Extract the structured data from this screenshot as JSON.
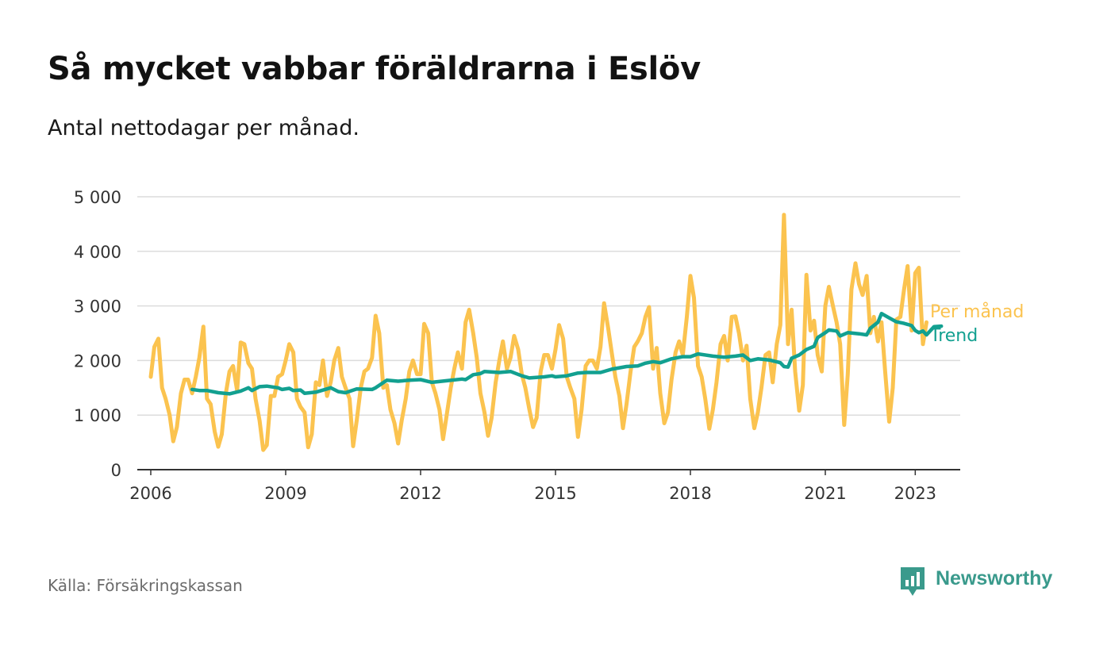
{
  "title": "Så mycket vabbar föräldrarna i Eslöv",
  "subtitle": "Antal nettodagar per månad.",
  "source": "Källa: Försäkringskassan",
  "brand": {
    "name": "Newsworthy",
    "icon": "bar-chart-logo-icon",
    "color": "#3a9a8c"
  },
  "chart_data": {
    "type": "line",
    "ylim": [
      0,
      5000
    ],
    "yticks": [
      0,
      1000,
      2000,
      3000,
      4000,
      5000
    ],
    "ytick_labels": [
      "0",
      "1 000",
      "2 000",
      "3 000",
      "4 000",
      "5 000"
    ],
    "xticks": [
      2006,
      2009,
      2012,
      2015,
      2018,
      2021,
      2023
    ],
    "xtick_labels": [
      "2006",
      "2009",
      "2012",
      "2015",
      "2018",
      "2021",
      "2023"
    ],
    "grid": true,
    "legend_placement": "right, at line ends",
    "series": [
      {
        "name": "Per månad",
        "color": "#fbc34f",
        "points": [
          [
            2006.0,
            1700
          ],
          [
            2006.08,
            2250
          ],
          [
            2006.17,
            2400
          ],
          [
            2006.25,
            1500
          ],
          [
            2006.33,
            1300
          ],
          [
            2006.42,
            1000
          ],
          [
            2006.5,
            520
          ],
          [
            2006.58,
            780
          ],
          [
            2006.67,
            1400
          ],
          [
            2006.75,
            1650
          ],
          [
            2006.83,
            1650
          ],
          [
            2006.92,
            1400
          ],
          [
            2007.0,
            1700
          ],
          [
            2007.08,
            2050
          ],
          [
            2007.17,
            2620
          ],
          [
            2007.25,
            1300
          ],
          [
            2007.33,
            1200
          ],
          [
            2007.42,
            700
          ],
          [
            2007.5,
            420
          ],
          [
            2007.58,
            650
          ],
          [
            2007.67,
            1400
          ],
          [
            2007.75,
            1800
          ],
          [
            2007.83,
            1900
          ],
          [
            2007.92,
            1450
          ],
          [
            2008.0,
            2330
          ],
          [
            2008.08,
            2300
          ],
          [
            2008.17,
            1950
          ],
          [
            2008.25,
            1850
          ],
          [
            2008.33,
            1300
          ],
          [
            2008.42,
            900
          ],
          [
            2008.5,
            360
          ],
          [
            2008.58,
            450
          ],
          [
            2008.67,
            1350
          ],
          [
            2008.75,
            1350
          ],
          [
            2008.83,
            1700
          ],
          [
            2008.92,
            1750
          ],
          [
            2009.0,
            2000
          ],
          [
            2009.08,
            2300
          ],
          [
            2009.17,
            2150
          ],
          [
            2009.25,
            1300
          ],
          [
            2009.33,
            1150
          ],
          [
            2009.42,
            1050
          ],
          [
            2009.5,
            410
          ],
          [
            2009.58,
            650
          ],
          [
            2009.67,
            1600
          ],
          [
            2009.75,
            1550
          ],
          [
            2009.83,
            2000
          ],
          [
            2009.92,
            1350
          ],
          [
            2010.0,
            1600
          ],
          [
            2010.08,
            2000
          ],
          [
            2010.17,
            2230
          ],
          [
            2010.25,
            1700
          ],
          [
            2010.33,
            1500
          ],
          [
            2010.42,
            1300
          ],
          [
            2010.5,
            430
          ],
          [
            2010.58,
            900
          ],
          [
            2010.67,
            1500
          ],
          [
            2010.75,
            1800
          ],
          [
            2010.83,
            1850
          ],
          [
            2010.92,
            2050
          ],
          [
            2011.0,
            2820
          ],
          [
            2011.08,
            2500
          ],
          [
            2011.17,
            1500
          ],
          [
            2011.25,
            1550
          ],
          [
            2011.33,
            1100
          ],
          [
            2011.42,
            850
          ],
          [
            2011.5,
            480
          ],
          [
            2011.58,
            900
          ],
          [
            2011.67,
            1300
          ],
          [
            2011.75,
            1800
          ],
          [
            2011.83,
            2000
          ],
          [
            2011.92,
            1750
          ],
          [
            2012.0,
            1750
          ],
          [
            2012.08,
            2670
          ],
          [
            2012.17,
            2500
          ],
          [
            2012.25,
            1600
          ],
          [
            2012.33,
            1400
          ],
          [
            2012.42,
            1100
          ],
          [
            2012.5,
            560
          ],
          [
            2012.58,
            1000
          ],
          [
            2012.67,
            1500
          ],
          [
            2012.75,
            1850
          ],
          [
            2012.83,
            2150
          ],
          [
            2012.92,
            1850
          ],
          [
            2013.0,
            2700
          ],
          [
            2013.08,
            2930
          ],
          [
            2013.17,
            2500
          ],
          [
            2013.25,
            2050
          ],
          [
            2013.33,
            1400
          ],
          [
            2013.42,
            1050
          ],
          [
            2013.5,
            620
          ],
          [
            2013.58,
            950
          ],
          [
            2013.67,
            1600
          ],
          [
            2013.75,
            2000
          ],
          [
            2013.83,
            2350
          ],
          [
            2013.92,
            1850
          ],
          [
            2014.0,
            2050
          ],
          [
            2014.08,
            2450
          ],
          [
            2014.17,
            2200
          ],
          [
            2014.25,
            1750
          ],
          [
            2014.33,
            1500
          ],
          [
            2014.42,
            1100
          ],
          [
            2014.5,
            780
          ],
          [
            2014.58,
            950
          ],
          [
            2014.67,
            1800
          ],
          [
            2014.75,
            2100
          ],
          [
            2014.83,
            2100
          ],
          [
            2014.92,
            1850
          ],
          [
            2015.0,
            2200
          ],
          [
            2015.08,
            2650
          ],
          [
            2015.17,
            2400
          ],
          [
            2015.25,
            1700
          ],
          [
            2015.33,
            1500
          ],
          [
            2015.42,
            1300
          ],
          [
            2015.5,
            600
          ],
          [
            2015.58,
            1100
          ],
          [
            2015.67,
            1900
          ],
          [
            2015.75,
            2000
          ],
          [
            2015.83,
            2000
          ],
          [
            2015.92,
            1850
          ],
          [
            2016.0,
            2250
          ],
          [
            2016.08,
            3050
          ],
          [
            2016.17,
            2600
          ],
          [
            2016.25,
            2150
          ],
          [
            2016.33,
            1700
          ],
          [
            2016.42,
            1350
          ],
          [
            2016.5,
            760
          ],
          [
            2016.58,
            1200
          ],
          [
            2016.67,
            1800
          ],
          [
            2016.75,
            2250
          ],
          [
            2016.83,
            2350
          ],
          [
            2016.92,
            2500
          ],
          [
            2017.0,
            2800
          ],
          [
            2017.08,
            2980
          ],
          [
            2017.17,
            1850
          ],
          [
            2017.25,
            2230
          ],
          [
            2017.33,
            1400
          ],
          [
            2017.42,
            850
          ],
          [
            2017.5,
            1050
          ],
          [
            2017.58,
            1650
          ],
          [
            2017.67,
            2150
          ],
          [
            2017.75,
            2350
          ],
          [
            2017.83,
            2100
          ],
          [
            2017.92,
            2800
          ],
          [
            2018.0,
            3550
          ],
          [
            2018.08,
            3150
          ],
          [
            2018.17,
            1900
          ],
          [
            2018.25,
            1700
          ],
          [
            2018.33,
            1300
          ],
          [
            2018.42,
            750
          ],
          [
            2018.5,
            1100
          ],
          [
            2018.58,
            1600
          ],
          [
            2018.67,
            2300
          ],
          [
            2018.75,
            2450
          ],
          [
            2018.83,
            2000
          ],
          [
            2018.92,
            2800
          ],
          [
            2019.0,
            2810
          ],
          [
            2019.08,
            2500
          ],
          [
            2019.17,
            2000
          ],
          [
            2019.25,
            2270
          ],
          [
            2019.33,
            1300
          ],
          [
            2019.42,
            760
          ],
          [
            2019.5,
            1050
          ],
          [
            2019.58,
            1500
          ],
          [
            2019.67,
            2100
          ],
          [
            2019.75,
            2150
          ],
          [
            2019.83,
            1600
          ],
          [
            2019.92,
            2300
          ],
          [
            2020.0,
            2650
          ],
          [
            2020.08,
            4670
          ],
          [
            2020.17,
            2300
          ],
          [
            2020.25,
            2930
          ],
          [
            2020.33,
            1800
          ],
          [
            2020.42,
            1080
          ],
          [
            2020.5,
            1550
          ],
          [
            2020.58,
            3570
          ],
          [
            2020.67,
            2550
          ],
          [
            2020.75,
            2730
          ],
          [
            2020.83,
            2100
          ],
          [
            2020.92,
            1800
          ],
          [
            2021.0,
            3000
          ],
          [
            2021.08,
            3350
          ],
          [
            2021.17,
            3000
          ],
          [
            2021.25,
            2700
          ],
          [
            2021.33,
            2300
          ],
          [
            2021.42,
            820
          ],
          [
            2021.5,
            1750
          ],
          [
            2021.58,
            3300
          ],
          [
            2021.67,
            3780
          ],
          [
            2021.75,
            3400
          ],
          [
            2021.83,
            3200
          ],
          [
            2021.92,
            3550
          ],
          [
            2022.0,
            2500
          ],
          [
            2022.08,
            2800
          ],
          [
            2022.17,
            2350
          ],
          [
            2022.25,
            2700
          ],
          [
            2022.33,
            1800
          ],
          [
            2022.42,
            880
          ],
          [
            2022.5,
            1500
          ],
          [
            2022.58,
            2750
          ],
          [
            2022.67,
            2800
          ],
          [
            2022.75,
            3300
          ],
          [
            2022.83,
            3730
          ],
          [
            2022.92,
            2550
          ],
          [
            2023.0,
            3600
          ],
          [
            2023.08,
            3700
          ],
          [
            2023.17,
            2300
          ],
          [
            2023.25,
            2700
          ]
        ]
      },
      {
        "name": "Trend",
        "color": "#12a090",
        "points": [
          [
            2006.92,
            1470
          ],
          [
            2007.08,
            1450
          ],
          [
            2007.25,
            1450
          ],
          [
            2007.5,
            1410
          ],
          [
            2007.75,
            1390
          ],
          [
            2008.0,
            1440
          ],
          [
            2008.17,
            1500
          ],
          [
            2008.25,
            1450
          ],
          [
            2008.42,
            1520
          ],
          [
            2008.58,
            1530
          ],
          [
            2008.83,
            1500
          ],
          [
            2008.92,
            1470
          ],
          [
            2009.08,
            1490
          ],
          [
            2009.17,
            1450
          ],
          [
            2009.33,
            1460
          ],
          [
            2009.42,
            1400
          ],
          [
            2009.67,
            1420
          ],
          [
            2009.92,
            1480
          ],
          [
            2010.0,
            1500
          ],
          [
            2010.17,
            1430
          ],
          [
            2010.33,
            1410
          ],
          [
            2010.58,
            1480
          ],
          [
            2010.92,
            1470
          ],
          [
            2011.0,
            1500
          ],
          [
            2011.25,
            1640
          ],
          [
            2011.5,
            1620
          ],
          [
            2011.75,
            1640
          ],
          [
            2012.0,
            1650
          ],
          [
            2012.25,
            1600
          ],
          [
            2012.58,
            1630
          ],
          [
            2012.92,
            1660
          ],
          [
            2013.0,
            1650
          ],
          [
            2013.17,
            1740
          ],
          [
            2013.33,
            1760
          ],
          [
            2013.42,
            1800
          ],
          [
            2013.75,
            1780
          ],
          [
            2014.0,
            1800
          ],
          [
            2014.25,
            1720
          ],
          [
            2014.42,
            1680
          ],
          [
            2014.75,
            1700
          ],
          [
            2014.92,
            1720
          ],
          [
            2015.0,
            1700
          ],
          [
            2015.25,
            1720
          ],
          [
            2015.5,
            1770
          ],
          [
            2015.67,
            1780
          ],
          [
            2016.0,
            1780
          ],
          [
            2016.25,
            1840
          ],
          [
            2016.58,
            1890
          ],
          [
            2016.83,
            1900
          ],
          [
            2017.0,
            1950
          ],
          [
            2017.17,
            1980
          ],
          [
            2017.33,
            1960
          ],
          [
            2017.58,
            2030
          ],
          [
            2017.83,
            2070
          ],
          [
            2018.0,
            2070
          ],
          [
            2018.17,
            2120
          ],
          [
            2018.5,
            2080
          ],
          [
            2018.75,
            2060
          ],
          [
            2019.0,
            2080
          ],
          [
            2019.17,
            2100
          ],
          [
            2019.33,
            2000
          ],
          [
            2019.5,
            2030
          ],
          [
            2019.75,
            2010
          ],
          [
            2020.0,
            1960
          ],
          [
            2020.08,
            1890
          ],
          [
            2020.17,
            1880
          ],
          [
            2020.25,
            2040
          ],
          [
            2020.42,
            2100
          ],
          [
            2020.58,
            2200
          ],
          [
            2020.75,
            2260
          ],
          [
            2020.83,
            2420
          ],
          [
            2021.0,
            2510
          ],
          [
            2021.08,
            2560
          ],
          [
            2021.25,
            2540
          ],
          [
            2021.33,
            2450
          ],
          [
            2021.5,
            2510
          ],
          [
            2021.75,
            2490
          ],
          [
            2021.92,
            2470
          ],
          [
            2022.0,
            2590
          ],
          [
            2022.17,
            2700
          ],
          [
            2022.25,
            2860
          ],
          [
            2022.42,
            2780
          ],
          [
            2022.58,
            2710
          ],
          [
            2022.75,
            2680
          ],
          [
            2022.92,
            2640
          ],
          [
            2023.0,
            2550
          ],
          [
            2023.08,
            2510
          ],
          [
            2023.17,
            2540
          ],
          [
            2023.25,
            2470
          ],
          [
            2023.42,
            2620
          ],
          [
            2023.58,
            2630
          ]
        ]
      }
    ]
  }
}
